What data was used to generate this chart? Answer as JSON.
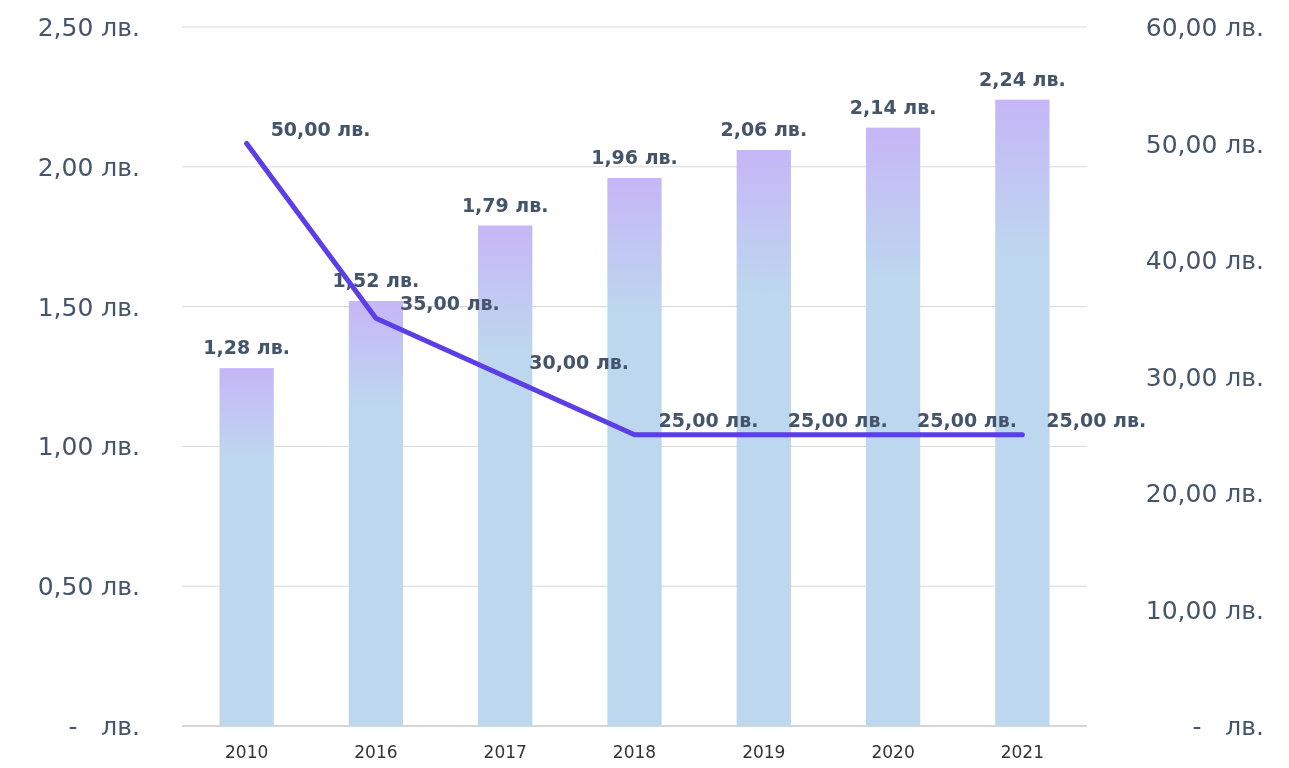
{
  "chart_data": {
    "type": "bar",
    "categories": [
      "2010",
      "2016",
      "2017",
      "2018",
      "2019",
      "2020",
      "2021"
    ],
    "series": [
      {
        "color": "#bdd7ee",
        "values": [
          1.28,
          1.52,
          1.79,
          1.96,
          2.06,
          2.14,
          2.24
        ],
        "value_labels": [
          "1,28 лв.",
          "1,52 лв.",
          "1,79 лв.",
          "1,96 лв.",
          "2,06 лв.",
          "2,14 лв.",
          "2,24 лв."
        ]
      },
      {
        "type": "line",
        "axis": "y2",
        "color": "#5b3ee6",
        "values": [
          50,
          35,
          30,
          25,
          25,
          25,
          25
        ],
        "value_labels": [
          "50,00 лв.",
          "35,00 лв.",
          "30,00 лв.",
          "25,00 лв.",
          "25,00 лв.",
          "25,00 лв.",
          "25,00 лв."
        ]
      }
    ],
    "ylim": [
      0,
      2.5
    ],
    "yticks": [
      {
        "value": 0,
        "label": "-   лв."
      },
      {
        "value": 0.5,
        "label": "0,50 лв."
      },
      {
        "value": 1,
        "label": "1,00 лв."
      },
      {
        "value": 1.5,
        "label": "1,50 лв."
      },
      {
        "value": 2,
        "label": "2,00 лв."
      },
      {
        "value": 2.5,
        "label": "2,50 лв."
      }
    ],
    "y2lim": [
      0,
      60
    ],
    "y2ticks": [
      {
        "value": 0,
        "label": "-   лв."
      },
      {
        "value": 10,
        "label": "10,00 лв."
      },
      {
        "value": 20,
        "label": "20,00 лв."
      },
      {
        "value": 30,
        "label": "30,00 лв."
      },
      {
        "value": 40,
        "label": "40,00 лв."
      },
      {
        "value": 50,
        "label": "50,00 лв."
      },
      {
        "value": 60,
        "label": "60,00 лв."
      }
    ],
    "grid": "y",
    "marker": "none",
    "line_style": "solid"
  }
}
